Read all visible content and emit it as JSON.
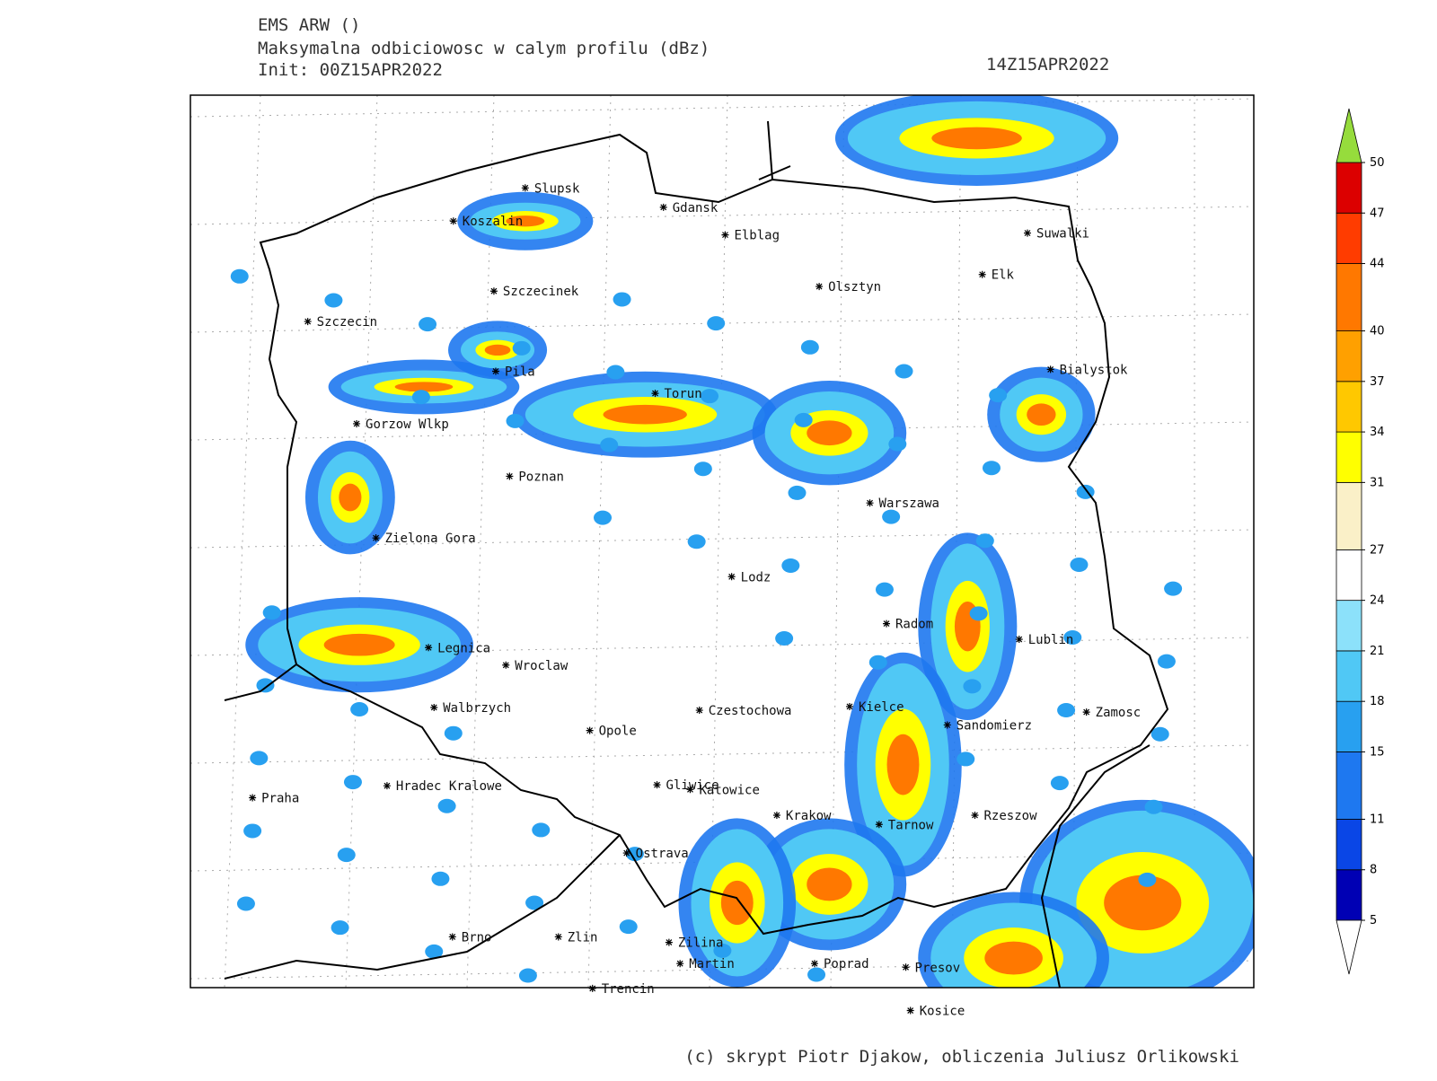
{
  "header": {
    "model": "EMS ARW ()",
    "product": "Maksymalna odbiciowosc w calym profilu (dBz)",
    "init": "Init: 00Z15APR2022",
    "valid": "14Z15APR2022"
  },
  "cities": [
    "Slupsk",
    "Koszalin",
    "Gdansk",
    "Elblag",
    "Suwalki",
    "Elk",
    "Szczecinek",
    "Olsztyn",
    "Szczecin",
    "Bialystok",
    "Pila",
    "Torun",
    "Gorzow Wlkp",
    "Poznan",
    "Warszawa",
    "Zielona Gora",
    "Lodz",
    "Radom",
    "Lublin",
    "Legnica",
    "Wroclaw",
    "Walbrzych",
    "Czestochowa",
    "Kielce",
    "Zamosc",
    "Sandomierz",
    "Opole",
    "Praha",
    "Hradec Kralowe",
    "Gliwice",
    "Katowice",
    "Krakow",
    "Tarnow",
    "Rzeszow",
    "Ostrava",
    "Brno",
    "Zlin",
    "Zilina",
    "Martin",
    "Poprad",
    "Presov",
    "Trencin",
    "Kosice"
  ],
  "colorbar": {
    "levels": [
      5,
      8,
      11,
      15,
      18,
      21,
      24,
      27,
      31,
      34,
      37,
      40,
      44,
      47,
      50
    ],
    "colors": [
      "#0000b4",
      "#0a46e6",
      "#1e78f0",
      "#28a0f0",
      "#50c8f5",
      "#8ce1fa",
      "#ffffff",
      "#faf0c8",
      "#ffff00",
      "#ffc800",
      "#ffa000",
      "#ff7800",
      "#ff3c00",
      "#dc0000"
    ],
    "over_color": "#96dc3c",
    "under_color": "#ffffff"
  },
  "footer": "(c) skrypt Piotr Djakow, obliczenia Juliusz Orlikowski"
}
